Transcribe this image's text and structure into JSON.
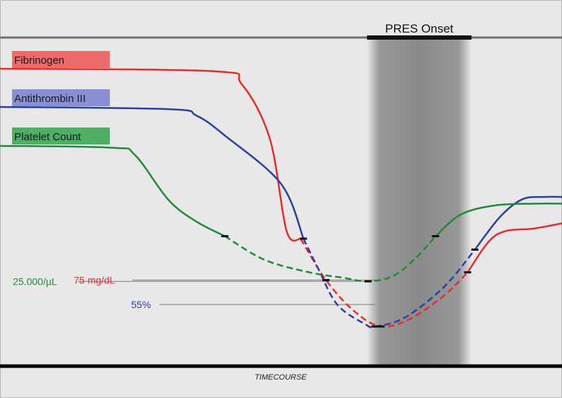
{
  "chart_data": {
    "type": "line",
    "title": "",
    "xlabel": "TIMECOURSE",
    "ylabel": "",
    "grid": false,
    "legend_placement": "top-left",
    "onset_band": {
      "label": "PRES Onset",
      "x_range": [
        0.653,
        0.839
      ]
    },
    "series": [
      {
        "name": "Fibrinogen",
        "color": "#e82c2c",
        "legend_color": "#ee6a6a",
        "solid": [
          [
            0.0,
            1.0
          ],
          [
            0.38,
            0.99
          ],
          [
            0.43,
            0.94
          ],
          [
            0.48,
            0.73
          ],
          [
            0.51,
            0.37
          ],
          [
            0.535,
            0.34
          ]
        ],
        "dashed": [
          [
            0.535,
            0.34
          ],
          [
            0.58,
            0.18
          ],
          [
            0.63,
            0.06
          ],
          [
            0.678,
            0.0
          ],
          [
            0.73,
            0.03
          ],
          [
            0.79,
            0.12
          ],
          [
            0.832,
            0.21
          ]
        ],
        "tail": [
          [
            0.832,
            0.21
          ],
          [
            0.87,
            0.33
          ],
          [
            0.9,
            0.37
          ],
          [
            0.95,
            0.38
          ],
          [
            1.0,
            0.4
          ]
        ],
        "markers": [
          [
            0.58,
            0.18
          ],
          [
            0.678,
            0.0
          ],
          [
            0.832,
            0.21
          ]
        ]
      },
      {
        "name": "Antithrombin III",
        "color": "#2a3fa0",
        "legend_color": "#8a8ed4",
        "solid": [
          [
            0.0,
            1.0
          ],
          [
            0.3,
            0.99
          ],
          [
            0.35,
            0.96
          ],
          [
            0.4,
            0.87
          ],
          [
            0.5,
            0.65
          ],
          [
            0.54,
            0.4
          ]
        ],
        "dashed": [
          [
            0.54,
            0.4
          ],
          [
            0.565,
            0.27
          ],
          [
            0.6,
            0.1
          ],
          [
            0.65,
            0.01
          ],
          [
            0.667,
            0.0
          ],
          [
            0.72,
            0.04
          ],
          [
            0.79,
            0.18
          ],
          [
            0.845,
            0.35
          ]
        ],
        "tail": [
          [
            0.845,
            0.35
          ],
          [
            0.89,
            0.5
          ],
          [
            0.93,
            0.58
          ],
          [
            0.97,
            0.59
          ],
          [
            1.0,
            0.59
          ]
        ],
        "markers": [
          [
            0.54,
            0.4
          ],
          [
            0.667,
            0.0
          ],
          [
            0.845,
            0.35
          ]
        ]
      },
      {
        "name": "Platelet Count",
        "color": "#1f8a3e",
        "legend_color": "#4caf64",
        "solid": [
          [
            0.0,
            1.0
          ],
          [
            0.2,
            0.99
          ],
          [
            0.24,
            0.95
          ],
          [
            0.3,
            0.7
          ],
          [
            0.35,
            0.58
          ],
          [
            0.4,
            0.5
          ]
        ],
        "dashed": [
          [
            0.4,
            0.5
          ],
          [
            0.47,
            0.37
          ],
          [
            0.55,
            0.3
          ],
          [
            0.61,
            0.27
          ],
          [
            0.655,
            0.25
          ],
          [
            0.7,
            0.28
          ],
          [
            0.74,
            0.38
          ],
          [
            0.775,
            0.5
          ]
        ],
        "tail": [
          [
            0.775,
            0.5
          ],
          [
            0.82,
            0.62
          ],
          [
            0.88,
            0.67
          ],
          [
            0.95,
            0.68
          ],
          [
            1.0,
            0.68
          ]
        ],
        "markers": [
          [
            0.4,
            0.5
          ],
          [
            0.655,
            0.25
          ],
          [
            0.775,
            0.5
          ]
        ]
      }
    ],
    "annotations": [
      {
        "text": "25.000/µL",
        "series": "Platelet Count",
        "color": "#1f8a3e",
        "y": 0.25,
        "x_end": 0.655
      },
      {
        "text": "75 mg/dL",
        "series": "Fibrinogen",
        "color": "#e82c2c",
        "y": 0.18,
        "x_end": 0.678
      },
      {
        "text": "55%",
        "series": "Antithrombin III",
        "color": "#2a3fa0",
        "y": 0.1,
        "x_end": 0.667
      }
    ]
  }
}
